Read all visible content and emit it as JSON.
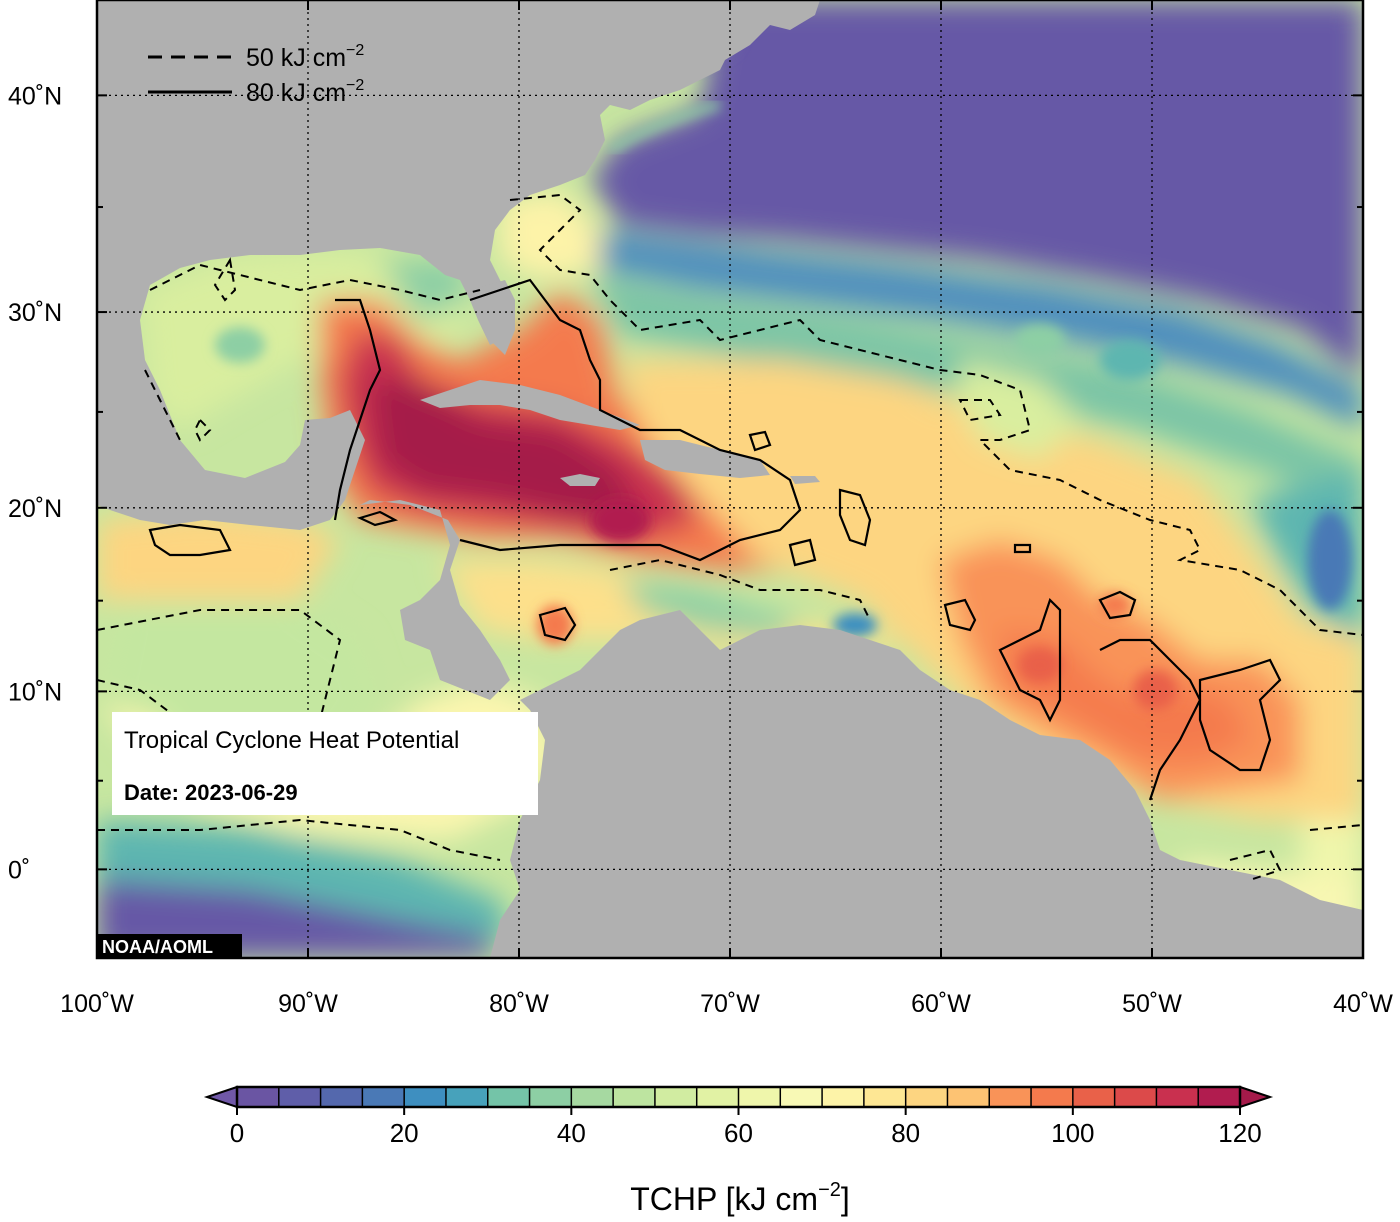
{
  "map": {
    "lon_range": [
      -100,
      -40
    ],
    "lat_range": [
      -5,
      44
    ],
    "lon_ticks": [
      {
        "value": -100,
        "label": "100˚W"
      },
      {
        "value": -90,
        "label": "90˚W"
      },
      {
        "value": -80,
        "label": "80˚W"
      },
      {
        "value": -70,
        "label": "70˚W"
      },
      {
        "value": -60,
        "label": "60˚W"
      },
      {
        "value": -50,
        "label": "50˚W"
      },
      {
        "value": -40,
        "label": "40˚W"
      }
    ],
    "lat_ticks": [
      {
        "value": 40,
        "label": "40˚N"
      },
      {
        "value": 30,
        "label": "30˚N"
      },
      {
        "value": 20,
        "label": "20˚N"
      },
      {
        "value": 10,
        "label": "10˚N"
      },
      {
        "value": 0,
        "label": "0˚"
      }
    ],
    "legend": {
      "dashed_label": "50 kJ cm",
      "solid_label": "80 kJ cm",
      "exponent": "−2"
    },
    "info_box": {
      "title": "Tropical Cyclone Heat Potential",
      "date_label": "Date:",
      "date_value": "2023-06-29"
    },
    "credit": "NOAA/AOML",
    "colors": {
      "land": "#b0b0b0",
      "deep_cold": "#6658a6",
      "frame": "#000000"
    }
  },
  "colorbar": {
    "min": 0,
    "max": 120,
    "step": 5,
    "ticks": [
      {
        "value": 0,
        "label": "0"
      },
      {
        "value": 20,
        "label": "20"
      },
      {
        "value": 40,
        "label": "40"
      },
      {
        "value": 60,
        "label": "60"
      },
      {
        "value": 80,
        "label": "80"
      },
      {
        "value": 100,
        "label": "100"
      },
      {
        "value": 120,
        "label": "120"
      }
    ],
    "colors": [
      "#6a55a3",
      "#5f5ea9",
      "#5468ad",
      "#4a79b6",
      "#3e8fc0",
      "#47a2bb",
      "#5db6b0",
      "#74c4a8",
      "#8dcfa4",
      "#a6d9a1",
      "#bde4a0",
      "#d1eca1",
      "#e1f2a4",
      "#eff6ab",
      "#f8f9b5",
      "#fdf3a8",
      "#fee794",
      "#fdd581",
      "#fdc373",
      "#fcac63",
      "#f99358",
      "#f47a4d",
      "#e96149",
      "#dc4a4a",
      "#c9304f",
      "#b11c4f"
    ],
    "under_color": "#7058a8",
    "over_color": "#a51a4a",
    "label": "TCHP [kJ cm",
    "label_exponent": "−2",
    "label_close": "]"
  }
}
